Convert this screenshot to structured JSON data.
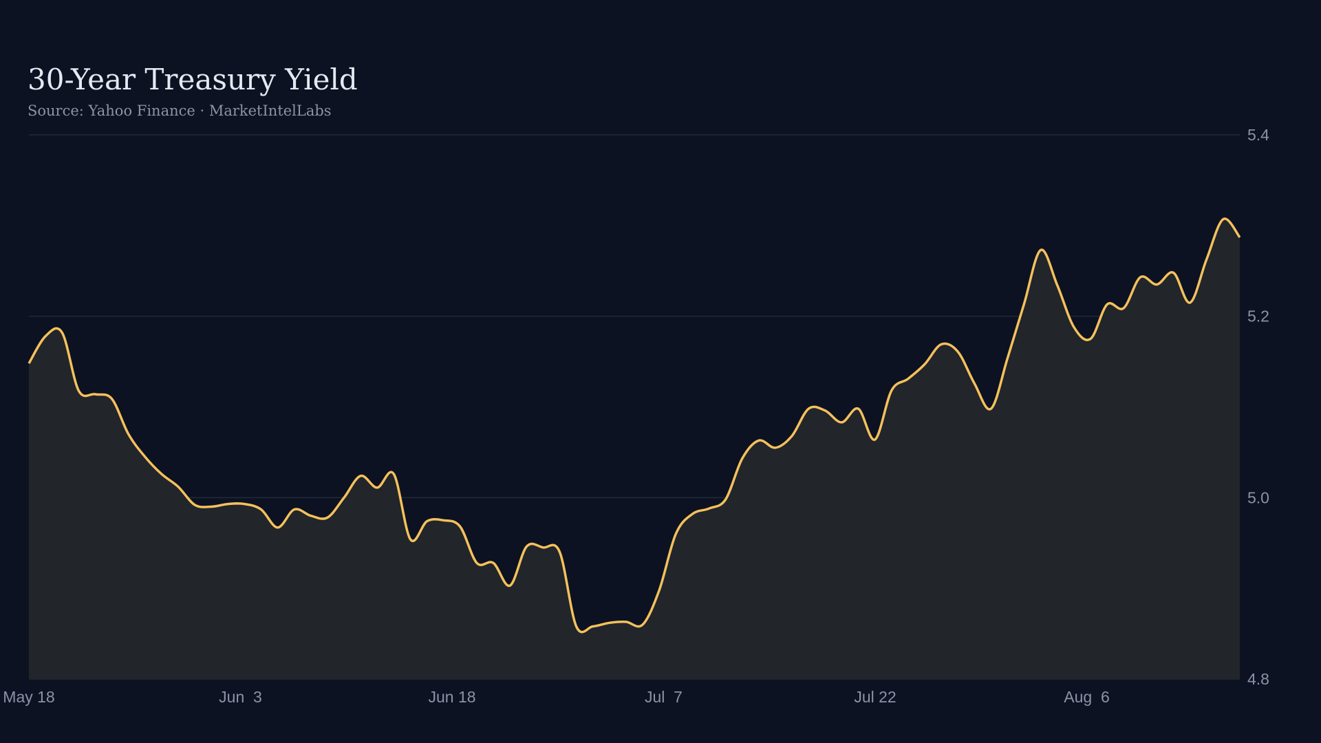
{
  "chart_data": {
    "type": "area",
    "title": "30-Year Treasury Yield",
    "subtitle": "Source: Yahoo Finance · MarketIntelLabs",
    "xlabel": "",
    "ylabel": "",
    "x_ticks": [
      "May 18",
      "Jun  3",
      "Jun 18",
      "Jul  7",
      "Jul 22",
      "Aug  6"
    ],
    "y_ticks": [
      "5.4",
      "5.2",
      "5.0",
      "4.8"
    ],
    "ylim": [
      4.8,
      5.4
    ],
    "grid": "horizontal",
    "y_axis_side": "right",
    "colors": {
      "line": "#f5c15c",
      "fill": "#22252a",
      "background": "#0c1222",
      "grid": "#232a39",
      "text": "#8b93a6",
      "title": "#e6e9f2"
    },
    "series": [
      {
        "values": [
          5.148,
          5.178,
          5.182,
          5.118,
          5.114,
          5.109,
          5.07,
          5.045,
          5.026,
          5.012,
          4.992,
          4.99,
          4.993,
          4.993,
          4.987,
          4.967,
          4.987,
          4.98,
          4.978,
          5.0,
          5.024,
          5.011,
          5.026,
          4.954,
          4.974,
          4.975,
          4.968,
          4.928,
          4.928,
          4.903,
          4.946,
          4.945,
          4.94,
          4.858,
          4.858,
          4.862,
          4.863,
          4.86,
          4.898,
          4.96,
          4.982,
          4.988,
          4.998,
          5.043,
          5.063,
          5.055,
          5.068,
          5.098,
          5.096,
          5.083,
          5.098,
          5.064,
          5.118,
          5.131,
          5.147,
          5.169,
          5.161,
          5.126,
          5.098,
          5.154,
          5.214,
          5.273,
          5.234,
          5.188,
          5.175,
          5.213,
          5.209,
          5.243,
          5.235,
          5.248,
          5.215,
          5.263,
          5.307,
          5.287
        ]
      }
    ]
  }
}
